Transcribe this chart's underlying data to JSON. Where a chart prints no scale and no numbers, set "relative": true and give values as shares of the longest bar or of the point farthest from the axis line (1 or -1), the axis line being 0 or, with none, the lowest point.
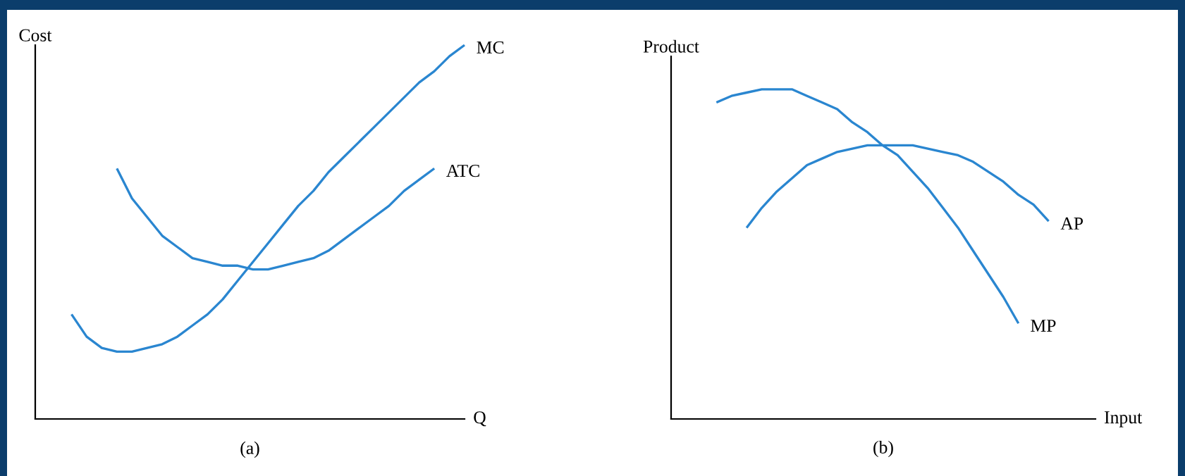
{
  "chart_data": [
    {
      "type": "line",
      "title": "(a)",
      "xlabel": "Q",
      "ylabel": "Cost",
      "relative": true,
      "grid": false,
      "legend": false,
      "marker": "none",
      "line_style": "solid",
      "categories": [
        null,
        null,
        null,
        null,
        null,
        null,
        null,
        null,
        null,
        null,
        null,
        null,
        null,
        null,
        null,
        null,
        null,
        null,
        null,
        null,
        null,
        null,
        null,
        null,
        null,
        null,
        null
      ],
      "series": [
        {
          "name": "MC",
          "color": "#2a86d0",
          "values": [
            0.28,
            0.22,
            0.19,
            0.18,
            0.18,
            0.19,
            0.2,
            0.22,
            0.25,
            0.28,
            0.32,
            0.37,
            0.42,
            0.47,
            0.52,
            0.57,
            0.61,
            0.66,
            0.7,
            0.74,
            0.78,
            0.82,
            0.86,
            0.9,
            0.93,
            0.97,
            1
          ]
        },
        {
          "name": "ATC",
          "color": "#2a86d0",
          "values": [
            null,
            null,
            null,
            0.67,
            0.59,
            0.54,
            0.49,
            0.46,
            0.43,
            0.42,
            0.41,
            0.41,
            0.4,
            0.4,
            0.41,
            0.42,
            0.43,
            0.45,
            0.48,
            0.51,
            0.54,
            0.57,
            0.61,
            0.64,
            0.67,
            null,
            null
          ]
        }
      ]
    },
    {
      "type": "line",
      "title": "(b)",
      "xlabel": "Input",
      "ylabel": "Product",
      "relative": true,
      "grid": false,
      "legend": false,
      "marker": "none",
      "line_style": "solid",
      "categories": [
        null,
        null,
        null,
        null,
        null,
        null,
        null,
        null,
        null,
        null,
        null,
        null,
        null,
        null,
        null,
        null,
        null,
        null,
        null,
        null,
        null,
        null,
        null,
        null
      ],
      "series": [
        {
          "name": "MP",
          "color": "#2a86d0",
          "values": [
            0.96,
            0.98,
            0.99,
            1,
            1,
            1,
            0.98,
            0.96,
            0.94,
            0.9,
            0.87,
            0.83,
            0.8,
            0.75,
            0.7,
            0.64,
            0.58,
            0.51,
            0.44,
            0.37,
            0.29,
            null,
            null,
            null
          ]
        },
        {
          "name": "AP",
          "color": "#2a86d0",
          "values": [
            null,
            null,
            0.58,
            0.64,
            0.69,
            0.73,
            0.77,
            0.79,
            0.81,
            0.82,
            0.83,
            0.83,
            0.83,
            0.83,
            0.82,
            0.81,
            0.8,
            0.78,
            0.75,
            0.72,
            0.68,
            0.65,
            0.6,
            null
          ]
        }
      ]
    }
  ]
}
